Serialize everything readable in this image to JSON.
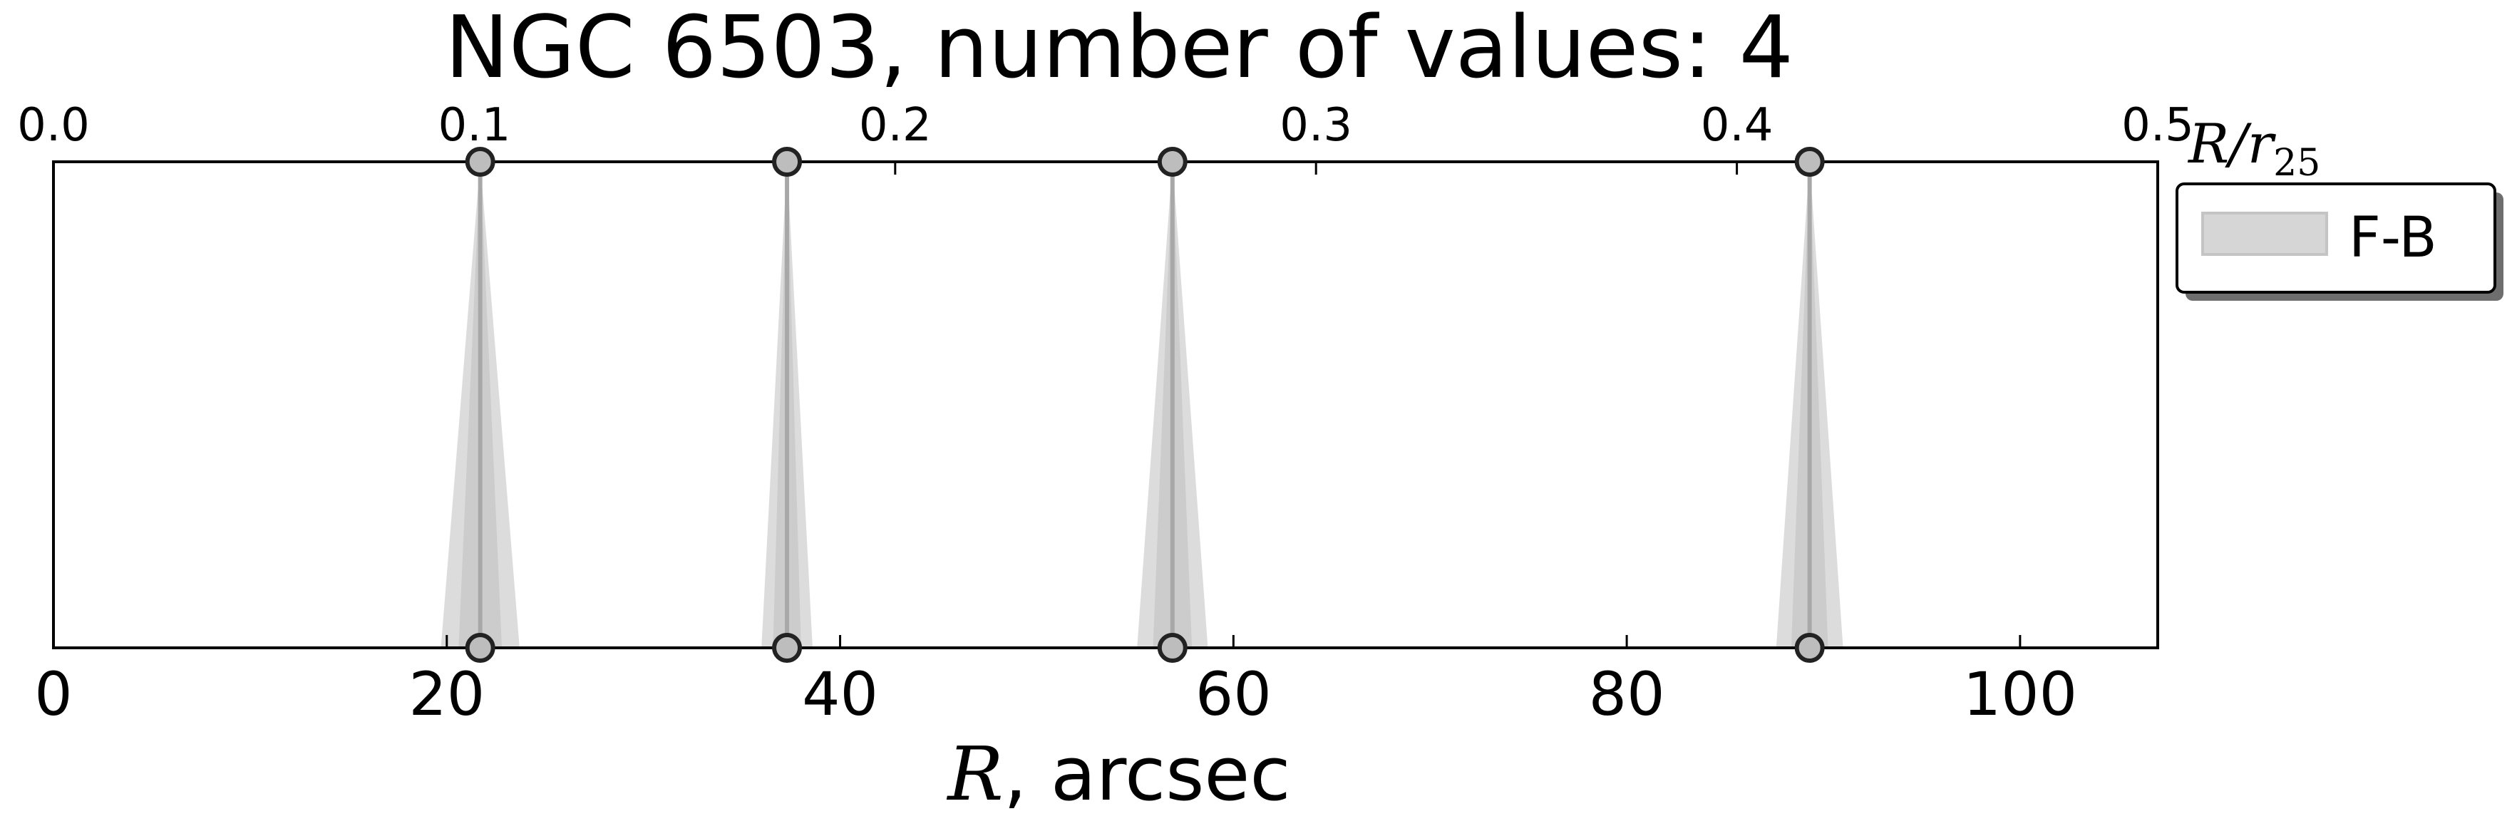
{
  "chart_data": {
    "type": "scatter",
    "title": "NGC 6503, number of values: 4",
    "xlabel": {
      "var": "R",
      "rest": ", arcsec"
    },
    "xlim": [
      0,
      107
    ],
    "xticks": [
      0,
      20,
      40,
      60,
      80,
      100
    ],
    "top_axis": {
      "label": {
        "var": "R/r",
        "sub": "25"
      },
      "lim": [
        0,
        0.5
      ],
      "ticks": [
        "0.0",
        "0.1",
        "0.2",
        "0.3",
        "0.4",
        "0.5"
      ]
    },
    "legend": {
      "placement": "outside-right-top",
      "entries": [
        "F-B"
      ]
    },
    "grid": false,
    "series": [
      {
        "name": "F-B",
        "color": "#c0c0c0",
        "points": [
          {
            "x": 21.7,
            "err": 2.0
          },
          {
            "x": 37.3,
            "err": 1.3
          },
          {
            "x": 56.9,
            "err": 1.8
          },
          {
            "x": 89.3,
            "err": 1.7
          }
        ]
      }
    ]
  }
}
